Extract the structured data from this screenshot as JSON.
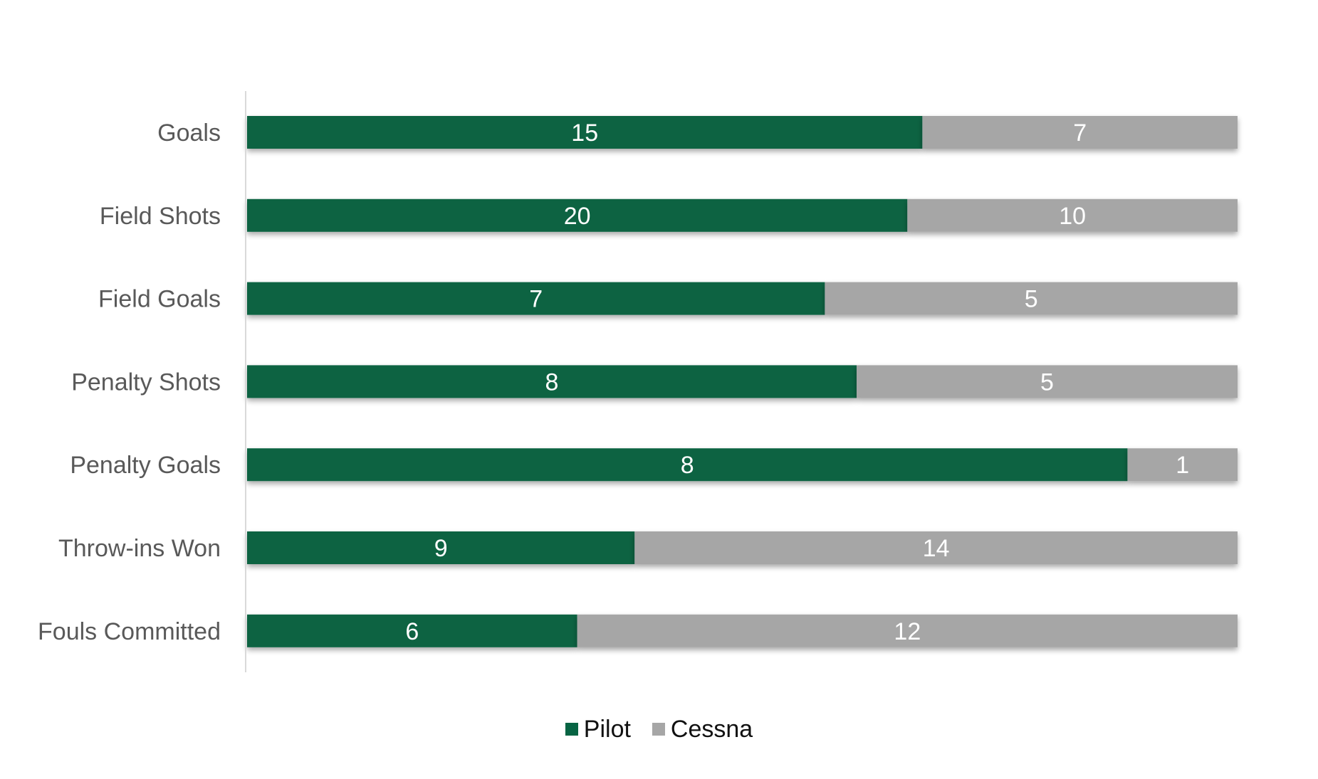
{
  "chart_data": {
    "type": "bar",
    "orientation": "horizontal",
    "stacked": true,
    "normalized": true,
    "categories": [
      "Goals",
      "Field Shots",
      "Field Goals",
      "Penalty Shots",
      "Penalty Goals",
      "Throw-ins Won",
      "Fouls Committed"
    ],
    "series": [
      {
        "name": "Pilot",
        "color": "#076443",
        "values": [
          15,
          20,
          7,
          8,
          8,
          9,
          6
        ]
      },
      {
        "name": "Cessna",
        "color": "#a6a6a6",
        "values": [
          7,
          10,
          5,
          5,
          1,
          14,
          12
        ]
      }
    ],
    "title": "",
    "xlabel": "",
    "ylabel": "",
    "grid": false,
    "legend_position": "bottom",
    "data_labels": true
  }
}
